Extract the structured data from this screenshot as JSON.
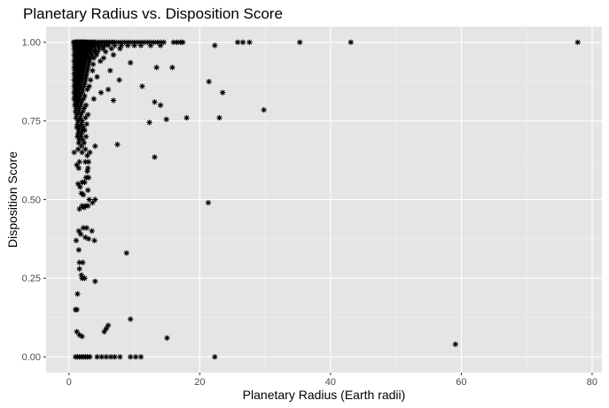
{
  "chart_data": {
    "type": "scatter",
    "title": "Planetary Radius vs. Disposition Score",
    "xlabel": "Planetary Radius (Earth radii)",
    "ylabel": "Disposition Score",
    "xlim": [
      -3.5,
      81.5
    ],
    "ylim": [
      -0.05,
      1.05
    ],
    "x_ticks": [
      0,
      20,
      40,
      60,
      80
    ],
    "x_tick_labels": [
      "0",
      "20",
      "40",
      "60",
      "80"
    ],
    "y_ticks": [
      0,
      0.25,
      0.5,
      0.75,
      1.0
    ],
    "y_tick_labels": [
      "0.00",
      "0.25",
      "0.50",
      "0.75",
      "1.00"
    ],
    "grid": true,
    "background": "#e5e5e5",
    "marker": "asterisk",
    "marker_color": "#000000",
    "points": [
      [
        0.7,
        1.0
      ],
      [
        0.9,
        1.0
      ],
      [
        1.0,
        1.0
      ],
      [
        1.1,
        1.0
      ],
      [
        1.2,
        1.0
      ],
      [
        1.3,
        1.0
      ],
      [
        1.4,
        1.0
      ],
      [
        1.5,
        1.0
      ],
      [
        1.6,
        1.0
      ],
      [
        1.7,
        1.0
      ],
      [
        1.8,
        1.0
      ],
      [
        1.9,
        1.0
      ],
      [
        2.0,
        1.0
      ],
      [
        2.1,
        1.0
      ],
      [
        2.2,
        1.0
      ],
      [
        2.3,
        1.0
      ],
      [
        2.4,
        1.0
      ],
      [
        2.5,
        1.0
      ],
      [
        2.6,
        1.0
      ],
      [
        2.8,
        1.0
      ],
      [
        3.0,
        1.0
      ],
      [
        3.2,
        1.0
      ],
      [
        3.4,
        1.0
      ],
      [
        3.6,
        1.0
      ],
      [
        3.8,
        1.0
      ],
      [
        4.0,
        1.0
      ],
      [
        4.3,
        1.0
      ],
      [
        4.6,
        1.0
      ],
      [
        5.0,
        1.0
      ],
      [
        5.4,
        1.0
      ],
      [
        5.8,
        1.0
      ],
      [
        6.2,
        1.0
      ],
      [
        6.6,
        1.0
      ],
      [
        7.0,
        1.0
      ],
      [
        7.5,
        1.0
      ],
      [
        8.0,
        1.0
      ],
      [
        8.5,
        1.0
      ],
      [
        9.0,
        1.0
      ],
      [
        9.5,
        1.0
      ],
      [
        10.0,
        1.0
      ],
      [
        10.5,
        1.0
      ],
      [
        11.0,
        1.0
      ],
      [
        11.5,
        1.0
      ],
      [
        12.0,
        1.0
      ],
      [
        12.5,
        1.0
      ],
      [
        13.0,
        1.0
      ],
      [
        13.5,
        1.0
      ],
      [
        14.0,
        1.0
      ],
      [
        14.5,
        1.0
      ],
      [
        16.0,
        1.0
      ],
      [
        16.5,
        1.0
      ],
      [
        17.0,
        1.0
      ],
      [
        17.4,
        1.0
      ],
      [
        25.8,
        1.0
      ],
      [
        26.6,
        1.0
      ],
      [
        27.6,
        1.0
      ],
      [
        35.3,
        1.0
      ],
      [
        43.1,
        1.0
      ],
      [
        77.8,
        1.0
      ],
      [
        0.8,
        0.99
      ],
      [
        1.0,
        0.99
      ],
      [
        1.2,
        0.99
      ],
      [
        1.4,
        0.99
      ],
      [
        1.6,
        0.99
      ],
      [
        1.8,
        0.99
      ],
      [
        2.0,
        0.99
      ],
      [
        2.2,
        0.99
      ],
      [
        2.4,
        0.99
      ],
      [
        2.6,
        0.99
      ],
      [
        2.8,
        0.99
      ],
      [
        3.0,
        0.99
      ],
      [
        3.3,
        0.99
      ],
      [
        3.6,
        0.99
      ],
      [
        4.0,
        0.99
      ],
      [
        4.5,
        0.99
      ],
      [
        5.0,
        0.99
      ],
      [
        5.5,
        0.99
      ],
      [
        6.0,
        0.99
      ],
      [
        7.0,
        0.99
      ],
      [
        8.0,
        0.99
      ],
      [
        9.0,
        0.99
      ],
      [
        10.0,
        0.99
      ],
      [
        11.0,
        0.99
      ],
      [
        12.5,
        0.99
      ],
      [
        14.0,
        0.99
      ],
      [
        22.3,
        0.99
      ],
      [
        0.8,
        0.98
      ],
      [
        1.0,
        0.98
      ],
      [
        1.2,
        0.98
      ],
      [
        1.4,
        0.98
      ],
      [
        1.6,
        0.98
      ],
      [
        1.8,
        0.98
      ],
      [
        2.0,
        0.98
      ],
      [
        2.2,
        0.98
      ],
      [
        2.5,
        0.98
      ],
      [
        2.8,
        0.98
      ],
      [
        3.1,
        0.98
      ],
      [
        3.5,
        0.98
      ],
      [
        4.0,
        0.98
      ],
      [
        4.6,
        0.98
      ],
      [
        5.2,
        0.98
      ],
      [
        6.5,
        0.98
      ],
      [
        7.8,
        0.98
      ],
      [
        0.9,
        0.97
      ],
      [
        1.1,
        0.97
      ],
      [
        1.3,
        0.97
      ],
      [
        1.5,
        0.97
      ],
      [
        1.7,
        0.97
      ],
      [
        1.9,
        0.97
      ],
      [
        2.1,
        0.97
      ],
      [
        2.4,
        0.97
      ],
      [
        2.7,
        0.97
      ],
      [
        3.0,
        0.97
      ],
      [
        3.4,
        0.97
      ],
      [
        3.9,
        0.97
      ],
      [
        4.4,
        0.97
      ],
      [
        5.6,
        0.97
      ],
      [
        0.8,
        0.96
      ],
      [
        1.0,
        0.96
      ],
      [
        1.2,
        0.96
      ],
      [
        1.4,
        0.96
      ],
      [
        1.6,
        0.96
      ],
      [
        1.8,
        0.96
      ],
      [
        2.0,
        0.96
      ],
      [
        2.3,
        0.96
      ],
      [
        2.6,
        0.96
      ],
      [
        3.0,
        0.96
      ],
      [
        3.5,
        0.96
      ],
      [
        4.2,
        0.96
      ],
      [
        6.8,
        0.96
      ],
      [
        0.9,
        0.95
      ],
      [
        1.1,
        0.95
      ],
      [
        1.3,
        0.95
      ],
      [
        1.5,
        0.95
      ],
      [
        1.7,
        0.95
      ],
      [
        1.9,
        0.95
      ],
      [
        2.2,
        0.95
      ],
      [
        2.5,
        0.95
      ],
      [
        2.9,
        0.95
      ],
      [
        3.3,
        0.95
      ],
      [
        3.8,
        0.95
      ],
      [
        5.3,
        0.95
      ],
      [
        0.8,
        0.94
      ],
      [
        1.0,
        0.94
      ],
      [
        1.2,
        0.94
      ],
      [
        1.4,
        0.94
      ],
      [
        1.6,
        0.94
      ],
      [
        1.9,
        0.94
      ],
      [
        2.2,
        0.94
      ],
      [
        2.6,
        0.94
      ],
      [
        3.1,
        0.94
      ],
      [
        4.8,
        0.94
      ],
      [
        9.4,
        0.935
      ],
      [
        0.9,
        0.93
      ],
      [
        1.1,
        0.93
      ],
      [
        1.3,
        0.93
      ],
      [
        1.5,
        0.93
      ],
      [
        1.8,
        0.93
      ],
      [
        2.1,
        0.93
      ],
      [
        2.5,
        0.93
      ],
      [
        3.0,
        0.93
      ],
      [
        3.7,
        0.93
      ],
      [
        0.8,
        0.92
      ],
      [
        1.0,
        0.92
      ],
      [
        1.2,
        0.92
      ],
      [
        1.4,
        0.92
      ],
      [
        1.7,
        0.92
      ],
      [
        2.0,
        0.92
      ],
      [
        2.4,
        0.92
      ],
      [
        2.9,
        0.92
      ],
      [
        13.4,
        0.92
      ],
      [
        15.8,
        0.92
      ],
      [
        0.9,
        0.91
      ],
      [
        1.1,
        0.91
      ],
      [
        1.3,
        0.91
      ],
      [
        1.6,
        0.91
      ],
      [
        1.9,
        0.91
      ],
      [
        2.3,
        0.91
      ],
      [
        2.8,
        0.91
      ],
      [
        3.6,
        0.91
      ],
      [
        6.3,
        0.91
      ],
      [
        0.8,
        0.9
      ],
      [
        1.0,
        0.9
      ],
      [
        1.2,
        0.9
      ],
      [
        1.5,
        0.9
      ],
      [
        1.8,
        0.9
      ],
      [
        2.2,
        0.9
      ],
      [
        2.7,
        0.9
      ],
      [
        0.9,
        0.89
      ],
      [
        1.1,
        0.89
      ],
      [
        1.4,
        0.89
      ],
      [
        1.7,
        0.89
      ],
      [
        2.1,
        0.89
      ],
      [
        2.6,
        0.89
      ],
      [
        4.3,
        0.89
      ],
      [
        0.8,
        0.88
      ],
      [
        1.0,
        0.88
      ],
      [
        1.3,
        0.88
      ],
      [
        1.6,
        0.88
      ],
      [
        2.0,
        0.88
      ],
      [
        2.5,
        0.88
      ],
      [
        3.3,
        0.88
      ],
      [
        7.7,
        0.88
      ],
      [
        21.4,
        0.875
      ],
      [
        0.9,
        0.87
      ],
      [
        1.2,
        0.87
      ],
      [
        1.5,
        0.87
      ],
      [
        1.9,
        0.87
      ],
      [
        2.4,
        0.87
      ],
      [
        0.8,
        0.86
      ],
      [
        1.1,
        0.86
      ],
      [
        1.4,
        0.86
      ],
      [
        1.8,
        0.86
      ],
      [
        2.3,
        0.86
      ],
      [
        3.1,
        0.86
      ],
      [
        11.2,
        0.86
      ],
      [
        0.9,
        0.85
      ],
      [
        1.2,
        0.85
      ],
      [
        1.6,
        0.85
      ],
      [
        2.1,
        0.85
      ],
      [
        2.8,
        0.85
      ],
      [
        6.0,
        0.85
      ],
      [
        0.8,
        0.84
      ],
      [
        1.1,
        0.84
      ],
      [
        1.5,
        0.84
      ],
      [
        2.0,
        0.84
      ],
      [
        4.9,
        0.84
      ],
      [
        23.5,
        0.84
      ],
      [
        0.9,
        0.83
      ],
      [
        1.3,
        0.83
      ],
      [
        1.7,
        0.83
      ],
      [
        2.4,
        0.83
      ],
      [
        0.8,
        0.82
      ],
      [
        1.2,
        0.82
      ],
      [
        1.6,
        0.82
      ],
      [
        2.2,
        0.82
      ],
      [
        3.8,
        0.82
      ],
      [
        6.8,
        0.815
      ],
      [
        1.0,
        0.81
      ],
      [
        1.4,
        0.81
      ],
      [
        1.9,
        0.81
      ],
      [
        13.1,
        0.81
      ],
      [
        0.9,
        0.8
      ],
      [
        1.3,
        0.8
      ],
      [
        1.8,
        0.8
      ],
      [
        2.6,
        0.8
      ],
      [
        14.0,
        0.8
      ],
      [
        1.1,
        0.79
      ],
      [
        1.6,
        0.79
      ],
      [
        2.3,
        0.79
      ],
      [
        1.0,
        0.78
      ],
      [
        1.5,
        0.78
      ],
      [
        2.1,
        0.78
      ],
      [
        29.8,
        0.785
      ],
      [
        1.2,
        0.77
      ],
      [
        1.8,
        0.77
      ],
      [
        2.9,
        0.77
      ],
      [
        1.1,
        0.76
      ],
      [
        1.7,
        0.76
      ],
      [
        2.5,
        0.76
      ],
      [
        18.0,
        0.76
      ],
      [
        23.0,
        0.76
      ],
      [
        1.4,
        0.75
      ],
      [
        2.0,
        0.75
      ],
      [
        14.9,
        0.755
      ],
      [
        1.3,
        0.74
      ],
      [
        1.9,
        0.74
      ],
      [
        2.7,
        0.74
      ],
      [
        12.3,
        0.745
      ],
      [
        1.2,
        0.73
      ],
      [
        1.6,
        0.73
      ],
      [
        2.2,
        0.73
      ],
      [
        1.5,
        0.72
      ],
      [
        2.0,
        0.72
      ],
      [
        2.4,
        0.72
      ],
      [
        1.4,
        0.71
      ],
      [
        1.9,
        0.71
      ],
      [
        1.3,
        0.7
      ],
      [
        1.8,
        0.7
      ],
      [
        2.6,
        0.7
      ],
      [
        1.6,
        0.69
      ],
      [
        2.1,
        0.69
      ],
      [
        1.5,
        0.68
      ],
      [
        2.3,
        0.68
      ],
      [
        7.4,
        0.675
      ],
      [
        1.9,
        0.67
      ],
      [
        4.0,
        0.67
      ],
      [
        1.4,
        0.66
      ],
      [
        2.5,
        0.66
      ],
      [
        0.8,
        0.65
      ],
      [
        2.0,
        0.65
      ],
      [
        3.2,
        0.65
      ],
      [
        2.8,
        0.64
      ],
      [
        13.1,
        0.635
      ],
      [
        1.6,
        0.62
      ],
      [
        2.5,
        0.62
      ],
      [
        3.0,
        0.62
      ],
      [
        1.2,
        0.61
      ],
      [
        2.9,
        0.6
      ],
      [
        1.5,
        0.6
      ],
      [
        2.8,
        0.59
      ],
      [
        2.6,
        0.57
      ],
      [
        3.0,
        0.57
      ],
      [
        1.4,
        0.55
      ],
      [
        2.0,
        0.555
      ],
      [
        2.4,
        0.555
      ],
      [
        1.7,
        0.54
      ],
      [
        2.9,
        0.53
      ],
      [
        1.9,
        0.52
      ],
      [
        2.2,
        0.515
      ],
      [
        3.1,
        0.5
      ],
      [
        3.6,
        0.49
      ],
      [
        4.0,
        0.5
      ],
      [
        21.3,
        0.49
      ],
      [
        2.0,
        0.48
      ],
      [
        2.5,
        0.48
      ],
      [
        2.9,
        0.48
      ],
      [
        1.6,
        0.47
      ],
      [
        2.3,
        0.475
      ],
      [
        2.2,
        0.41
      ],
      [
        2.7,
        0.41
      ],
      [
        1.5,
        0.4
      ],
      [
        1.8,
        0.39
      ],
      [
        3.5,
        0.4
      ],
      [
        2.5,
        0.38
      ],
      [
        3.0,
        0.375
      ],
      [
        1.1,
        0.37
      ],
      [
        3.9,
        0.37
      ],
      [
        1.5,
        0.34
      ],
      [
        8.8,
        0.33
      ],
      [
        1.6,
        0.3
      ],
      [
        2.1,
        0.3
      ],
      [
        1.6,
        0.28
      ],
      [
        1.9,
        0.26
      ],
      [
        2.0,
        0.25
      ],
      [
        2.4,
        0.25
      ],
      [
        4.0,
        0.24
      ],
      [
        1.3,
        0.2
      ],
      [
        1.0,
        0.15
      ],
      [
        1.2,
        0.15
      ],
      [
        9.4,
        0.12
      ],
      [
        6.0,
        0.1
      ],
      [
        5.7,
        0.09
      ],
      [
        5.4,
        0.08
      ],
      [
        1.2,
        0.08
      ],
      [
        1.6,
        0.07
      ],
      [
        2.0,
        0.065
      ],
      [
        15.0,
        0.06
      ],
      [
        59.1,
        0.04
      ],
      [
        1.0,
        0.0
      ],
      [
        1.3,
        0.0
      ],
      [
        1.6,
        0.0
      ],
      [
        1.9,
        0.0
      ],
      [
        2.2,
        0.0
      ],
      [
        2.5,
        0.0
      ],
      [
        2.8,
        0.0
      ],
      [
        3.2,
        0.0
      ],
      [
        4.3,
        0.0
      ],
      [
        5.0,
        0.0
      ],
      [
        5.7,
        0.0
      ],
      [
        6.4,
        0.0
      ],
      [
        7.0,
        0.0
      ],
      [
        7.8,
        0.0
      ],
      [
        9.4,
        0.0
      ],
      [
        10.2,
        0.0
      ],
      [
        11.0,
        0.0
      ],
      [
        22.3,
        0.0
      ]
    ]
  }
}
